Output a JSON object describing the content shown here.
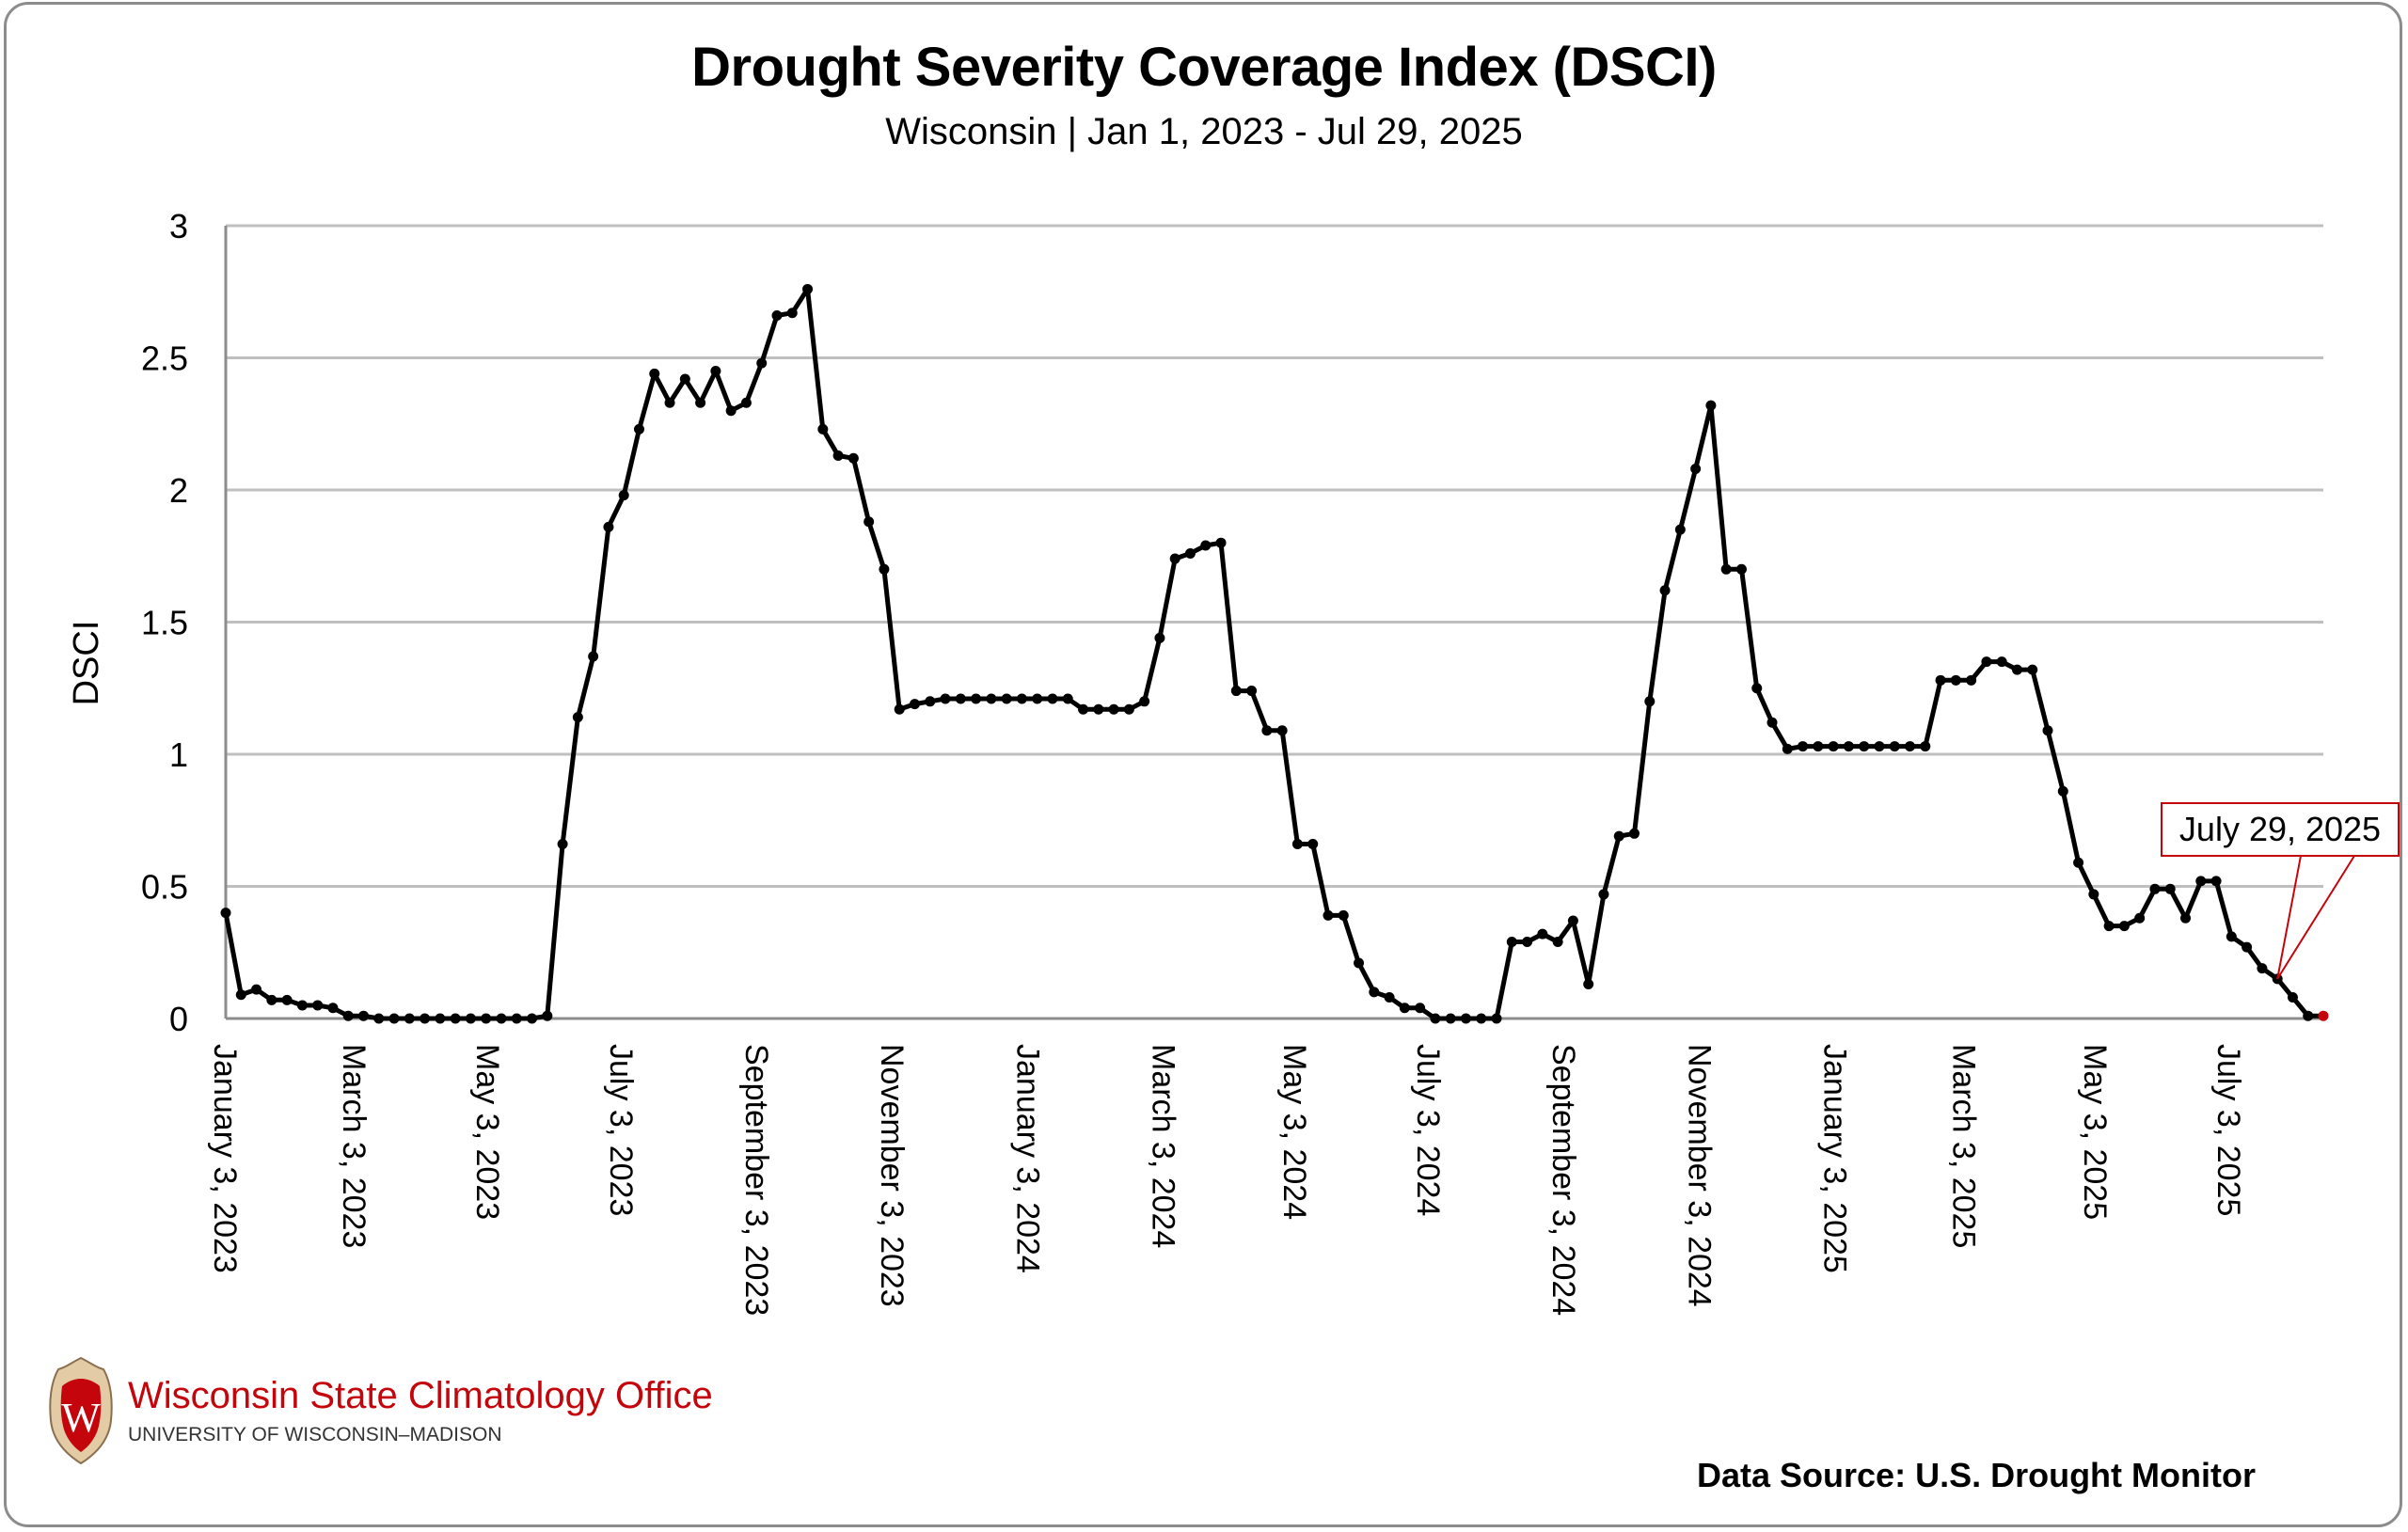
{
  "header": {
    "title": "Drought Severity Coverage Index (DSCI)",
    "subtitle": "Wisconsin | Jan 1, 2023 - Jul 29, 2025"
  },
  "footer": {
    "source": "Data Source: U.S. Drought Monitor",
    "logo_title": "Wisconsin State Climatology Office",
    "logo_subtitle": "UNIVERSITY OF WISCONSIN–MADISON"
  },
  "colors": {
    "line": "#000000",
    "grid": "#bfbfbf",
    "axis": "#8c8c8c",
    "callout": "#c5050c",
    "brand": "#c5050c"
  },
  "chart_data": {
    "type": "line",
    "title": "Drought Severity Coverage Index (DSCI)",
    "subtitle": "Wisconsin | Jan 1, 2023 - Jul 29, 2025",
    "xlabel": "",
    "ylabel": "DSCI",
    "ylim": [
      0,
      3
    ],
    "yticks": [
      0,
      0.5,
      1,
      1.5,
      2,
      2.5,
      3
    ],
    "ytick_labels": [
      "0",
      "0.5",
      "1",
      "1.5",
      "2",
      "2.5",
      "3"
    ],
    "grid": true,
    "x_start": "2023-01-03",
    "x_end": "2025-07-29",
    "x_interval": "weekly",
    "xtick_labels": [
      "January 3, 2023",
      "March 3, 2023",
      "May 3, 2023",
      "July 3, 2023",
      "September 3, 2023",
      "November 3, 2023",
      "January 3, 2024",
      "March 3, 2024",
      "May 3, 2024",
      "July 3, 2024",
      "September 3, 2024",
      "November 3, 2024",
      "January 3, 2025",
      "March 3, 2025",
      "May 3, 2025",
      "July 3, 2025"
    ],
    "xtick_weeks": [
      0,
      8.43,
      17.14,
      25.86,
      34.71,
      43.57,
      52.43,
      61.29,
      69.86,
      78.57,
      87.43,
      96.29,
      105.14,
      113.57,
      122.14,
      130.86
    ],
    "annotation": {
      "label": "July 29, 2025",
      "point_index": 134
    },
    "series": [
      {
        "name": "DSCI",
        "values": [
          0.4,
          0.09,
          0.11,
          0.07,
          0.07,
          0.05,
          0.05,
          0.04,
          0.01,
          0.01,
          0.0,
          0.0,
          0.0,
          0.0,
          0.0,
          0.0,
          0.0,
          0.0,
          0.0,
          0.0,
          0.0,
          0.01,
          0.66,
          1.14,
          1.37,
          1.86,
          1.98,
          2.23,
          2.44,
          2.33,
          2.42,
          2.33,
          2.45,
          2.3,
          2.33,
          2.48,
          2.66,
          2.67,
          2.76,
          2.23,
          2.13,
          2.12,
          1.88,
          1.7,
          1.17,
          1.19,
          1.2,
          1.21,
          1.21,
          1.21,
          1.21,
          1.21,
          1.21,
          1.21,
          1.21,
          1.21,
          1.17,
          1.17,
          1.17,
          1.17,
          1.2,
          1.44,
          1.74,
          1.76,
          1.79,
          1.8,
          1.24,
          1.24,
          1.09,
          1.09,
          0.66,
          0.66,
          0.39,
          0.39,
          0.21,
          0.1,
          0.08,
          0.04,
          0.04,
          0.0,
          0.0,
          0.0,
          0.0,
          0.0,
          0.29,
          0.29,
          0.32,
          0.29,
          0.37,
          0.13,
          0.47,
          0.69,
          0.7,
          1.2,
          1.62,
          1.85,
          2.08,
          2.32,
          1.7,
          1.7,
          1.25,
          1.12,
          1.02,
          1.03,
          1.03,
          1.03,
          1.03,
          1.03,
          1.03,
          1.03,
          1.03,
          1.03,
          1.28,
          1.28,
          1.28,
          1.35,
          1.35,
          1.32,
          1.32,
          1.09,
          0.86,
          0.59,
          0.47,
          0.35,
          0.35,
          0.38,
          0.49,
          0.49,
          0.38,
          0.52,
          0.52,
          0.31,
          0.27,
          0.19,
          0.15,
          0.08,
          0.01,
          0.01
        ]
      }
    ]
  }
}
